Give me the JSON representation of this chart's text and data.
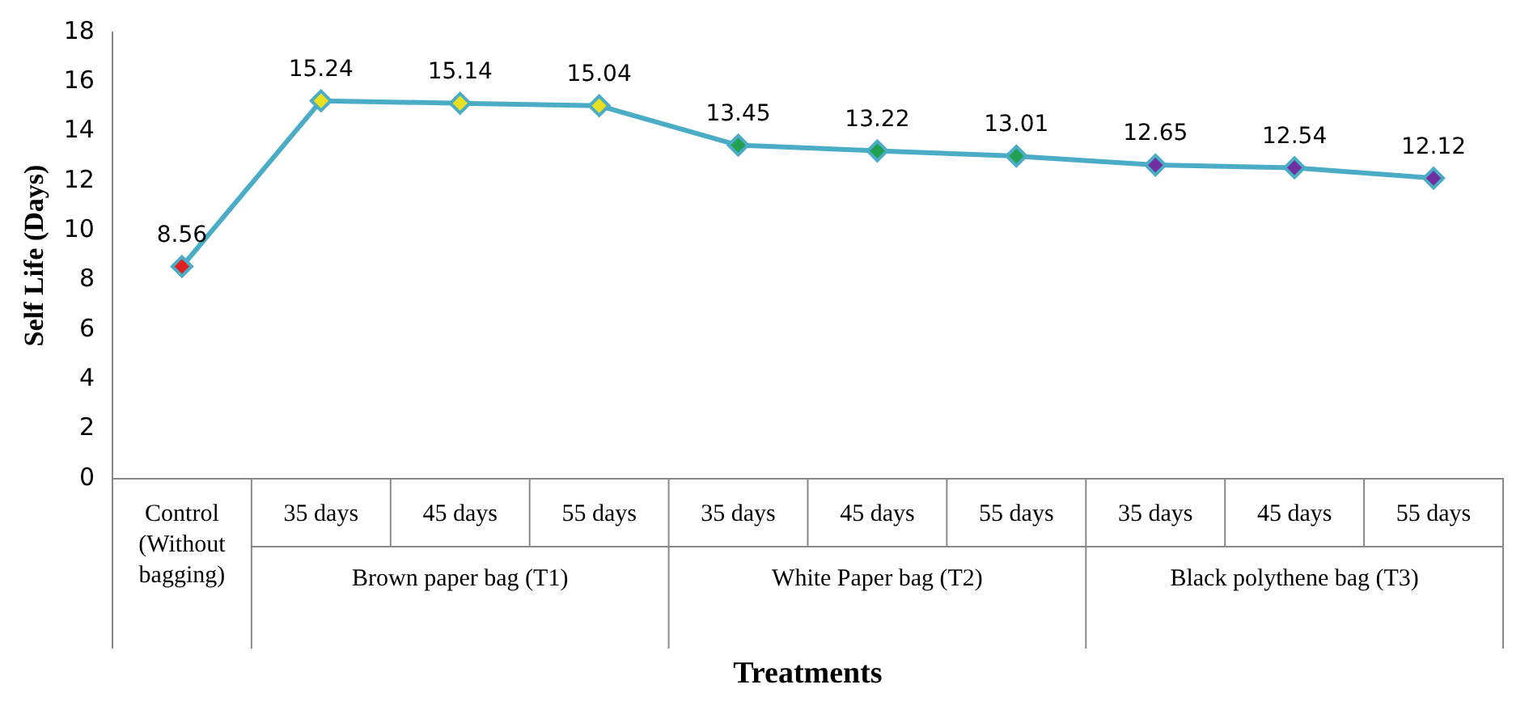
{
  "chart_data": {
    "type": "line",
    "xlabel": "Treatments",
    "ylabel": "Self Life (Days)",
    "categories": [
      "Control (Without bagging)",
      "35 days",
      "45 days",
      "55 days",
      "35 days",
      "45 days",
      "55 days",
      "35 days",
      "45 days",
      "55 days"
    ],
    "annotations": [
      "Brown paper bag (T1)",
      "White Paper bag (T2)",
      "Black polythene bag (T3)"
    ],
    "series": [
      {
        "color": "#4bacc6",
        "colors": [
          "#e02020",
          "#e8e020",
          "#e8e020",
          "#e8e020",
          "#20a050",
          "#20a050",
          "#20a050",
          "#7030a0",
          "#7030a0",
          "#7030a0"
        ],
        "values": [
          8.56,
          15.24,
          15.14,
          15.04,
          13.45,
          13.22,
          13.01,
          12.65,
          12.54,
          12.12
        ]
      }
    ],
    "ylim": [
      0,
      18
    ],
    "yticks": [
      0,
      2,
      4,
      6,
      8,
      10,
      12,
      14,
      16,
      18
    ],
    "grid": false,
    "legend": false,
    "marker": "diamond",
    "line_style": "solid",
    "data_labels": true
  }
}
